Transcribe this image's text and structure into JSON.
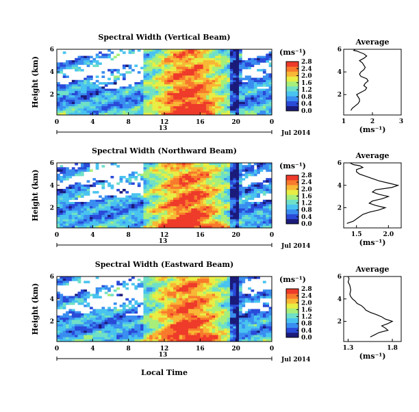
{
  "chart_data": [
    {
      "type": "heatmap",
      "title": "Spectral Width (Vertical Beam)",
      "ylabel": "Height (km)",
      "xlabel": "",
      "x_ticks": [
        "0",
        "4",
        "8",
        "12",
        "16",
        "20",
        "0"
      ],
      "y_ticks": [
        "2",
        "4",
        "6"
      ],
      "date_marker": "13",
      "date_label": "Jul 2014",
      "colorbar": {
        "unit": "(ms⁻¹)",
        "ticks": [
          "0.0",
          "0.4",
          "0.8",
          "1.2",
          "1.6",
          "2.0",
          "2.4",
          "2.8"
        ]
      },
      "xlim": [
        0,
        24
      ],
      "ylim": [
        0.2,
        6
      ]
    },
    {
      "type": "heatmap",
      "title": "Spectral Width (Northward Beam)",
      "ylabel": "Height (km)",
      "xlabel": "",
      "x_ticks": [
        "0",
        "4",
        "8",
        "12",
        "16",
        "20",
        "0"
      ],
      "y_ticks": [
        "2",
        "4",
        "6"
      ],
      "date_marker": "13",
      "date_label": "Jul 2014",
      "colorbar": {
        "unit": "(ms⁻¹)",
        "ticks": [
          "0.0",
          "0.4",
          "0.8",
          "1.2",
          "1.6",
          "2.0",
          "2.4",
          "2.8"
        ]
      },
      "xlim": [
        0,
        24
      ],
      "ylim": [
        0.2,
        6
      ]
    },
    {
      "type": "heatmap",
      "title": "Spectral Width (Eastward Beam)",
      "ylabel": "Height (km)",
      "xlabel": "Local Time",
      "x_ticks": [
        "0",
        "4",
        "8",
        "12",
        "16",
        "20",
        "0"
      ],
      "y_ticks": [
        "2",
        "4",
        "6"
      ],
      "date_marker": "13",
      "date_label": "Jul 2014",
      "colorbar": {
        "unit": "(ms⁻¹)",
        "ticks": [
          "0.0",
          "0.4",
          "0.8",
          "1.2",
          "1.6",
          "2.0",
          "2.4",
          "2.8"
        ]
      },
      "xlim": [
        0,
        24
      ],
      "ylim": [
        0.2,
        6
      ]
    },
    {
      "type": "line",
      "title": "Average",
      "xlabel": "(ms⁻¹)",
      "x_ticks": [
        "1",
        "2",
        "3"
      ],
      "y_ticks": [
        "2",
        "4",
        "6"
      ],
      "xlim": [
        1,
        3
      ],
      "ylim": [
        0.2,
        6
      ],
      "x": [
        1.25,
        1.3,
        1.4,
        1.5,
        1.55,
        1.55,
        1.5,
        1.45,
        1.6,
        1.75,
        1.8,
        1.7,
        1.75,
        1.85,
        1.8,
        1.6,
        1.55,
        1.6,
        1.7,
        1.75,
        1.7,
        1.65,
        1.55,
        1.7,
        1.8,
        1.7,
        1.6,
        1.5,
        1.45,
        1.35,
        1.4
      ],
      "y": [
        0.6,
        0.8,
        1.0,
        1.2,
        1.4,
        1.6,
        1.8,
        2.0,
        2.2,
        2.4,
        2.6,
        2.8,
        3.0,
        3.2,
        3.4,
        3.6,
        3.8,
        4.0,
        4.2,
        4.4,
        4.6,
        4.8,
        5.0,
        5.2,
        5.4,
        5.6,
        5.7,
        5.8,
        5.85,
        5.9,
        6.0
      ]
    },
    {
      "type": "line",
      "title": "Average",
      "xlabel": "(ms⁻¹)",
      "x_ticks": [
        "1.5",
        "2.0"
      ],
      "y_ticks": [
        "2",
        "4",
        "6"
      ],
      "xlim": [
        1.3,
        2.2
      ],
      "ylim": [
        0.2,
        6
      ],
      "x": [
        1.35,
        1.45,
        1.5,
        1.55,
        1.6,
        1.7,
        1.85,
        1.95,
        1.8,
        1.7,
        1.75,
        1.9,
        2.0,
        1.85,
        1.75,
        1.8,
        2.05,
        2.15,
        2.0,
        1.85,
        1.75,
        1.65,
        1.55,
        1.5,
        1.5,
        1.6,
        1.55,
        1.45,
        1.4
      ],
      "y": [
        0.6,
        0.8,
        1.0,
        1.2,
        1.4,
        1.6,
        1.8,
        2.0,
        2.2,
        2.4,
        2.6,
        2.8,
        3.0,
        3.2,
        3.4,
        3.6,
        3.8,
        4.0,
        4.2,
        4.4,
        4.6,
        4.8,
        5.0,
        5.2,
        5.4,
        5.6,
        5.75,
        5.85,
        6.0
      ]
    },
    {
      "type": "line",
      "title": "Average",
      "xlabel": "(ms⁻¹)",
      "x_ticks": [
        "1.3",
        "1.8"
      ],
      "y_ticks": [
        "2",
        "4",
        "6"
      ],
      "xlim": [
        1.25,
        1.9
      ],
      "ylim": [
        0.2,
        6
      ],
      "x": [
        1.55,
        1.6,
        1.65,
        1.75,
        1.72,
        1.68,
        1.75,
        1.8,
        1.72,
        1.68,
        1.62,
        1.55,
        1.5,
        1.48,
        1.45,
        1.4,
        1.38,
        1.35,
        1.33,
        1.32,
        1.33,
        1.32,
        1.3,
        1.31,
        1.3
      ],
      "y": [
        0.6,
        0.8,
        1.0,
        1.2,
        1.4,
        1.6,
        1.8,
        2.0,
        2.2,
        2.4,
        2.6,
        2.8,
        3.0,
        3.2,
        3.4,
        3.6,
        3.8,
        4.0,
        4.2,
        4.4,
        4.8,
        5.2,
        5.5,
        5.8,
        6.0
      ]
    }
  ],
  "palette": [
    "#1b1b7a",
    "#2a4ad8",
    "#3a8ef0",
    "#49c3ef",
    "#6fe0c7",
    "#a7ef7a",
    "#e8ee44",
    "#f8b735",
    "#f87a2c",
    "#ee3b2a"
  ]
}
